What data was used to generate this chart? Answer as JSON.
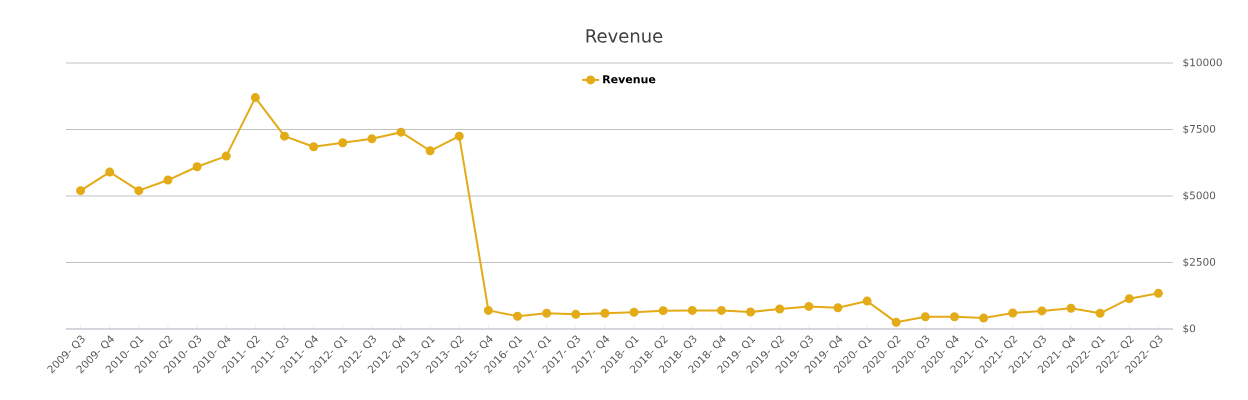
{
  "chart_data": {
    "type": "line",
    "title": "Revenue",
    "categories": [
      "2009- Q3",
      "2009- Q4",
      "2010- Q1",
      "2010- Q2",
      "2010- Q3",
      "2010- Q4",
      "2011- Q2",
      "2011- Q3",
      "2011- Q4",
      "2012- Q1",
      "2012- Q3",
      "2012- Q4",
      "2013- Q1",
      "2013- Q2",
      "2015- Q4",
      "2016- Q1",
      "2017- Q1",
      "2017- Q3",
      "2017- Q4",
      "2018- Q1",
      "2018- Q2",
      "2018- Q3",
      "2018- Q4",
      "2019- Q1",
      "2019- Q2",
      "2019- Q3",
      "2019- Q4",
      "2020- Q1",
      "2020- Q2",
      "2020- Q3",
      "2020- Q4",
      "2021- Q1",
      "2021- Q2",
      "2021- Q3",
      "2021- Q4",
      "2022- Q1",
      "2022- Q2",
      "2022- Q3"
    ],
    "series": [
      {
        "name": "Revenue",
        "color": "#e3ab17",
        "values": [
          5200,
          5900,
          5200,
          5600,
          6100,
          6500,
          8700,
          7250,
          6850,
          7000,
          7150,
          7400,
          6700,
          7250,
          700,
          480,
          590,
          550,
          590,
          630,
          690,
          700,
          700,
          640,
          750,
          850,
          800,
          1050,
          250,
          460,
          460,
          410,
          600,
          680,
          780,
          590,
          1140,
          1340
        ]
      }
    ],
    "ylim": [
      0,
      10000
    ],
    "yticks": [
      {
        "value": 0,
        "label": "$0"
      },
      {
        "value": 2500,
        "label": "$2500"
      },
      {
        "value": 5000,
        "label": "$5000"
      },
      {
        "value": 7500,
        "label": "$7500"
      },
      {
        "value": 10000,
        "label": "$10000"
      }
    ],
    "grid": "y",
    "legend": "top",
    "marker": "circle",
    "line_style": "solid"
  }
}
